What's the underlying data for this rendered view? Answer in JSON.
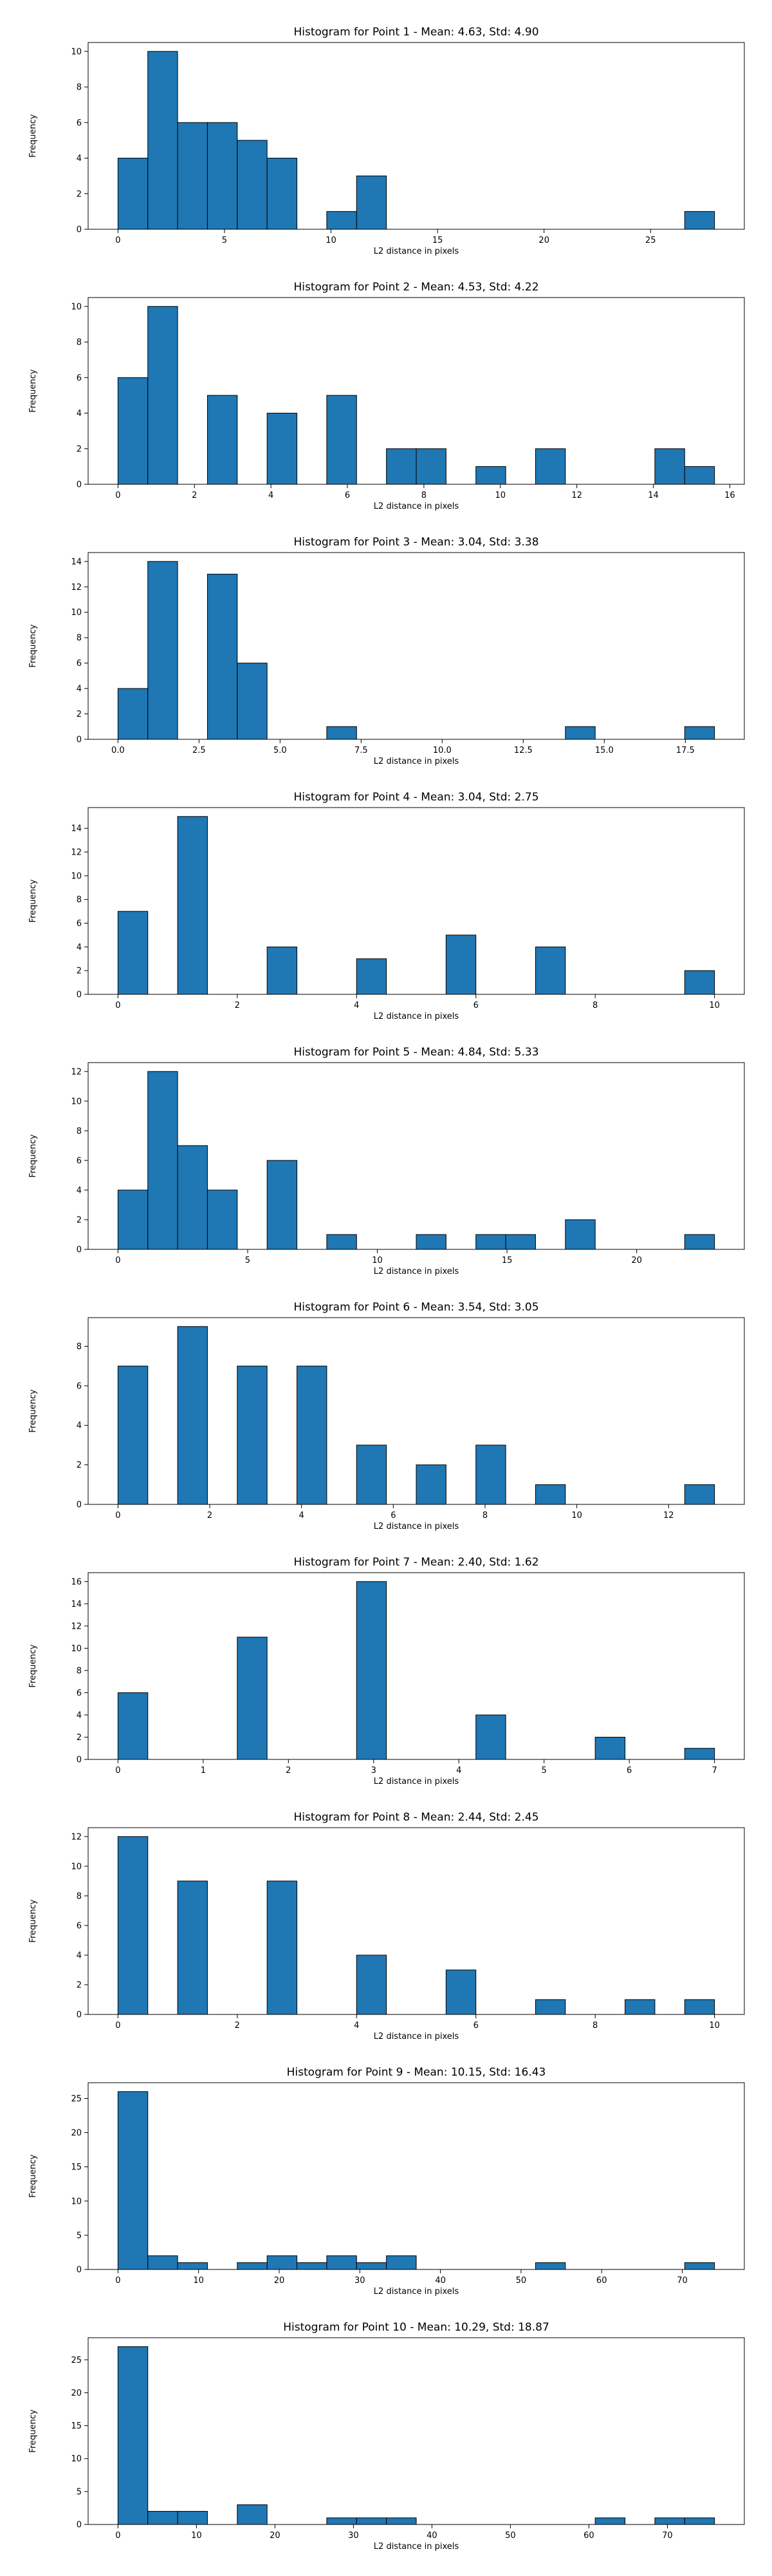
{
  "chart_data": [
    {
      "type": "bar",
      "title": "Histogram for Point 1 - Mean: 4.63, Std: 4.90",
      "xlabel": "L2 distance in pixels",
      "ylabel": "Frequency",
      "bars": [
        [
          0,
          1.4,
          4
        ],
        [
          1.4,
          2.8,
          10
        ],
        [
          2.8,
          4.2,
          6
        ],
        [
          4.2,
          5.6,
          6
        ],
        [
          5.6,
          7.0,
          5
        ],
        [
          7.0,
          8.4,
          4
        ],
        [
          9.8,
          11.2,
          1
        ],
        [
          11.2,
          12.6,
          3
        ],
        [
          26.6,
          28.0,
          1
        ]
      ],
      "xlim": [
        -1.4,
        29.4
      ],
      "ylim": [
        0,
        10.5
      ],
      "xticks": [
        0,
        5,
        10,
        15,
        20,
        25
      ],
      "xtick_labels": [
        "0",
        "5",
        "10",
        "15",
        "20",
        "25"
      ],
      "yticks": [
        0,
        2,
        4,
        6,
        8,
        10
      ],
      "grid": false,
      "color": "#1f77b4"
    },
    {
      "type": "bar",
      "title": "Histogram for Point 2 - Mean: 4.53, Std: 4.22",
      "xlabel": "L2 distance in pixels",
      "ylabel": "Frequency",
      "bars": [
        [
          0,
          0.78,
          6
        ],
        [
          0.78,
          1.56,
          10
        ],
        [
          2.34,
          3.12,
          5
        ],
        [
          3.9,
          4.68,
          4
        ],
        [
          5.46,
          6.24,
          5
        ],
        [
          7.02,
          7.8,
          2
        ],
        [
          7.8,
          8.58,
          2
        ],
        [
          9.36,
          10.14,
          1
        ],
        [
          10.92,
          11.7,
          2
        ],
        [
          14.04,
          14.82,
          2
        ],
        [
          14.82,
          15.6,
          1
        ]
      ],
      "xlim": [
        -0.78,
        16.38
      ],
      "ylim": [
        0,
        10.5
      ],
      "xticks": [
        0,
        2,
        4,
        6,
        8,
        10,
        12,
        14,
        16
      ],
      "xtick_labels": [
        "0",
        "2",
        "4",
        "6",
        "8",
        "10",
        "12",
        "14",
        "16"
      ],
      "yticks": [
        0,
        2,
        4,
        6,
        8,
        10
      ],
      "grid": false,
      "color": "#1f77b4"
    },
    {
      "type": "bar",
      "title": "Histogram for Point 3 - Mean: 3.04, Std: 3.38",
      "xlabel": "L2 distance in pixels",
      "ylabel": "Frequency",
      "bars": [
        [
          0,
          0.92,
          4
        ],
        [
          0.92,
          1.84,
          14
        ],
        [
          2.76,
          3.68,
          13
        ],
        [
          3.68,
          4.6,
          6
        ],
        [
          6.44,
          7.36,
          1
        ],
        [
          13.8,
          14.72,
          1
        ],
        [
          17.48,
          18.4,
          1
        ]
      ],
      "xlim": [
        -0.92,
        19.32
      ],
      "ylim": [
        0,
        14.7
      ],
      "xticks": [
        0,
        2.5,
        5,
        7.5,
        10,
        12.5,
        15,
        17.5
      ],
      "xtick_labels": [
        "0.0",
        "2.5",
        "5.0",
        "7.5",
        "10.0",
        "12.5",
        "15.0",
        "17.5"
      ],
      "yticks": [
        0,
        2,
        4,
        6,
        8,
        10,
        12,
        14
      ],
      "grid": false,
      "color": "#1f77b4"
    },
    {
      "type": "bar",
      "title": "Histogram for Point 4 - Mean: 3.04, Std: 2.75",
      "xlabel": "L2 distance in pixels",
      "ylabel": "Frequency",
      "bars": [
        [
          0,
          0.5,
          7
        ],
        [
          1,
          1.5,
          15
        ],
        [
          2.5,
          3,
          4
        ],
        [
          4,
          4.5,
          3
        ],
        [
          5.5,
          6,
          5
        ],
        [
          7,
          7.5,
          4
        ],
        [
          9.5,
          10,
          2
        ]
      ],
      "xlim": [
        -0.5,
        10.5
      ],
      "ylim": [
        0,
        15.75
      ],
      "xticks": [
        0,
        2,
        4,
        6,
        8,
        10
      ],
      "xtick_labels": [
        "0",
        "2",
        "4",
        "6",
        "8",
        "10"
      ],
      "yticks": [
        0,
        2,
        4,
        6,
        8,
        10,
        12,
        14
      ],
      "grid": false,
      "color": "#1f77b4"
    },
    {
      "type": "bar",
      "title": "Histogram for Point 5 - Mean: 4.84, Std: 5.33",
      "xlabel": "L2 distance in pixels",
      "ylabel": "Frequency",
      "bars": [
        [
          0,
          1.15,
          4
        ],
        [
          1.15,
          2.3,
          12
        ],
        [
          2.3,
          3.45,
          7
        ],
        [
          3.45,
          4.6,
          4
        ],
        [
          5.75,
          6.9,
          6
        ],
        [
          8.05,
          9.2,
          1
        ],
        [
          11.5,
          12.65,
          1
        ],
        [
          13.8,
          14.95,
          1
        ],
        [
          14.95,
          16.1,
          1
        ],
        [
          17.25,
          18.4,
          2
        ],
        [
          21.85,
          23.0,
          1
        ]
      ],
      "xlim": [
        -1.15,
        24.15
      ],
      "ylim": [
        0,
        12.6
      ],
      "xticks": [
        0,
        5,
        10,
        15,
        20
      ],
      "xtick_labels": [
        "0",
        "5",
        "10",
        "15",
        "20"
      ],
      "yticks": [
        0,
        2,
        4,
        6,
        8,
        10,
        12
      ],
      "grid": false,
      "color": "#1f77b4"
    },
    {
      "type": "bar",
      "title": "Histogram for Point 6 - Mean: 3.54, Std: 3.05",
      "xlabel": "L2 distance in pixels",
      "ylabel": "Frequency",
      "bars": [
        [
          0,
          0.65,
          7
        ],
        [
          1.3,
          1.95,
          9
        ],
        [
          2.6,
          3.25,
          7
        ],
        [
          3.9,
          4.55,
          7
        ],
        [
          5.2,
          5.85,
          3
        ],
        [
          6.5,
          7.15,
          2
        ],
        [
          7.8,
          8.45,
          3
        ],
        [
          9.1,
          9.75,
          1
        ],
        [
          12.35,
          13.0,
          1
        ]
      ],
      "xlim": [
        -0.65,
        13.65
      ],
      "ylim": [
        0,
        9.45
      ],
      "xticks": [
        0,
        2,
        4,
        6,
        8,
        10,
        12
      ],
      "xtick_labels": [
        "0",
        "2",
        "4",
        "6",
        "8",
        "10",
        "12"
      ],
      "yticks": [
        0,
        2,
        4,
        6,
        8
      ],
      "grid": false,
      "color": "#1f77b4"
    },
    {
      "type": "bar",
      "title": "Histogram for Point 7 - Mean: 2.40, Std: 1.62",
      "xlabel": "L2 distance in pixels",
      "ylabel": "Frequency",
      "bars": [
        [
          0,
          0.35,
          6
        ],
        [
          1.4,
          1.75,
          11
        ],
        [
          2.8,
          3.15,
          16
        ],
        [
          4.2,
          4.55,
          4
        ],
        [
          5.6,
          5.95,
          2
        ],
        [
          6.65,
          7.0,
          1
        ]
      ],
      "xlim": [
        -0.35,
        7.35
      ],
      "ylim": [
        0,
        16.8
      ],
      "xticks": [
        0,
        1,
        2,
        3,
        4,
        5,
        6,
        7
      ],
      "xtick_labels": [
        "0",
        "1",
        "2",
        "3",
        "4",
        "5",
        "6",
        "7"
      ],
      "yticks": [
        0,
        2,
        4,
        6,
        8,
        10,
        12,
        14,
        16
      ],
      "grid": false,
      "color": "#1f77b4"
    },
    {
      "type": "bar",
      "title": "Histogram for Point 8 - Mean: 2.44, Std: 2.45",
      "xlabel": "L2 distance in pixels",
      "ylabel": "Frequency",
      "bars": [
        [
          0,
          0.5,
          12
        ],
        [
          1,
          1.5,
          9
        ],
        [
          2.5,
          3,
          9
        ],
        [
          4,
          4.5,
          4
        ],
        [
          5.5,
          6,
          3
        ],
        [
          7,
          7.5,
          1
        ],
        [
          8.5,
          9,
          1
        ],
        [
          9.5,
          10,
          1
        ]
      ],
      "xlim": [
        -0.5,
        10.5
      ],
      "ylim": [
        0,
        12.6
      ],
      "xticks": [
        0,
        2,
        4,
        6,
        8,
        10
      ],
      "xtick_labels": [
        "0",
        "2",
        "4",
        "6",
        "8",
        "10"
      ],
      "yticks": [
        0,
        2,
        4,
        6,
        8,
        10,
        12
      ],
      "grid": false,
      "color": "#1f77b4"
    },
    {
      "type": "bar",
      "title": "Histogram for Point 9 - Mean: 10.15, Std: 16.43",
      "xlabel": "L2 distance in pixels",
      "ylabel": "Frequency",
      "bars": [
        [
          0,
          3.7,
          26
        ],
        [
          3.7,
          7.4,
          2
        ],
        [
          7.4,
          11.1,
          1
        ],
        [
          14.8,
          18.5,
          1
        ],
        [
          18.5,
          22.2,
          2
        ],
        [
          22.2,
          25.9,
          1
        ],
        [
          25.9,
          29.6,
          2
        ],
        [
          29.6,
          33.3,
          1
        ],
        [
          33.3,
          37.0,
          2
        ],
        [
          51.8,
          55.5,
          1
        ],
        [
          70.3,
          74.0,
          1
        ]
      ],
      "xlim": [
        -3.7,
        77.7
      ],
      "ylim": [
        0,
        27.3
      ],
      "xticks": [
        0,
        10,
        20,
        30,
        40,
        50,
        60,
        70
      ],
      "xtick_labels": [
        "0",
        "10",
        "20",
        "30",
        "40",
        "50",
        "60",
        "70"
      ],
      "yticks": [
        0,
        5,
        10,
        15,
        20,
        25
      ],
      "grid": false,
      "color": "#1f77b4"
    },
    {
      "type": "bar",
      "title": "Histogram for Point 10 - Mean: 10.29, Std: 18.87",
      "xlabel": "L2 distance in pixels",
      "ylabel": "Frequency",
      "bars": [
        [
          0,
          3.8,
          27
        ],
        [
          3.8,
          7.6,
          2
        ],
        [
          7.6,
          11.4,
          2
        ],
        [
          15.2,
          19.0,
          3
        ],
        [
          26.6,
          30.4,
          1
        ],
        [
          30.4,
          34.2,
          1
        ],
        [
          34.2,
          38.0,
          1
        ],
        [
          60.8,
          64.6,
          1
        ],
        [
          68.4,
          72.2,
          1
        ],
        [
          72.2,
          76.0,
          1
        ]
      ],
      "xlim": [
        -3.8,
        79.8
      ],
      "ylim": [
        0,
        28.35
      ],
      "xticks": [
        0,
        10,
        20,
        30,
        40,
        50,
        60,
        70
      ],
      "xtick_labels": [
        "0",
        "10",
        "20",
        "30",
        "40",
        "50",
        "60",
        "70"
      ],
      "yticks": [
        0,
        5,
        10,
        15,
        20,
        25
      ],
      "grid": false,
      "color": "#1f77b4"
    }
  ]
}
